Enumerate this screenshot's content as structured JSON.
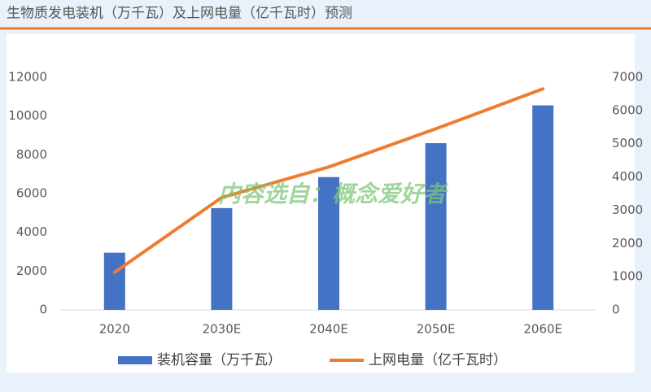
{
  "chart_data": {
    "type": "bar",
    "title": "生物质发电装机（万千瓦）及上网电量（亿千瓦时）预测",
    "watermark": "内容选自：概念爱好者",
    "categories": [
      "2020",
      "2030E",
      "2040E",
      "2050E",
      "2060E"
    ],
    "series": [
      {
        "name": "装机容量（万千瓦）",
        "type": "bar",
        "color": "#4472c4",
        "values": [
          2950,
          5250,
          6850,
          8600,
          10550
        ]
      },
      {
        "name": "上网电量（亿千瓦时）",
        "type": "line",
        "axis": "y2",
        "color": "#ed7d31",
        "values": [
          1130,
          3380,
          4300,
          5450,
          6650
        ]
      }
    ],
    "ylim": [
      0,
      12000
    ],
    "yticks": [
      0,
      2000,
      4000,
      6000,
      8000,
      10000,
      12000
    ],
    "y2lim": [
      0,
      7000
    ],
    "y2ticks": [
      0,
      1000,
      2000,
      3000,
      4000,
      5000,
      6000,
      7000
    ],
    "grid": false,
    "legend": "bottom"
  }
}
